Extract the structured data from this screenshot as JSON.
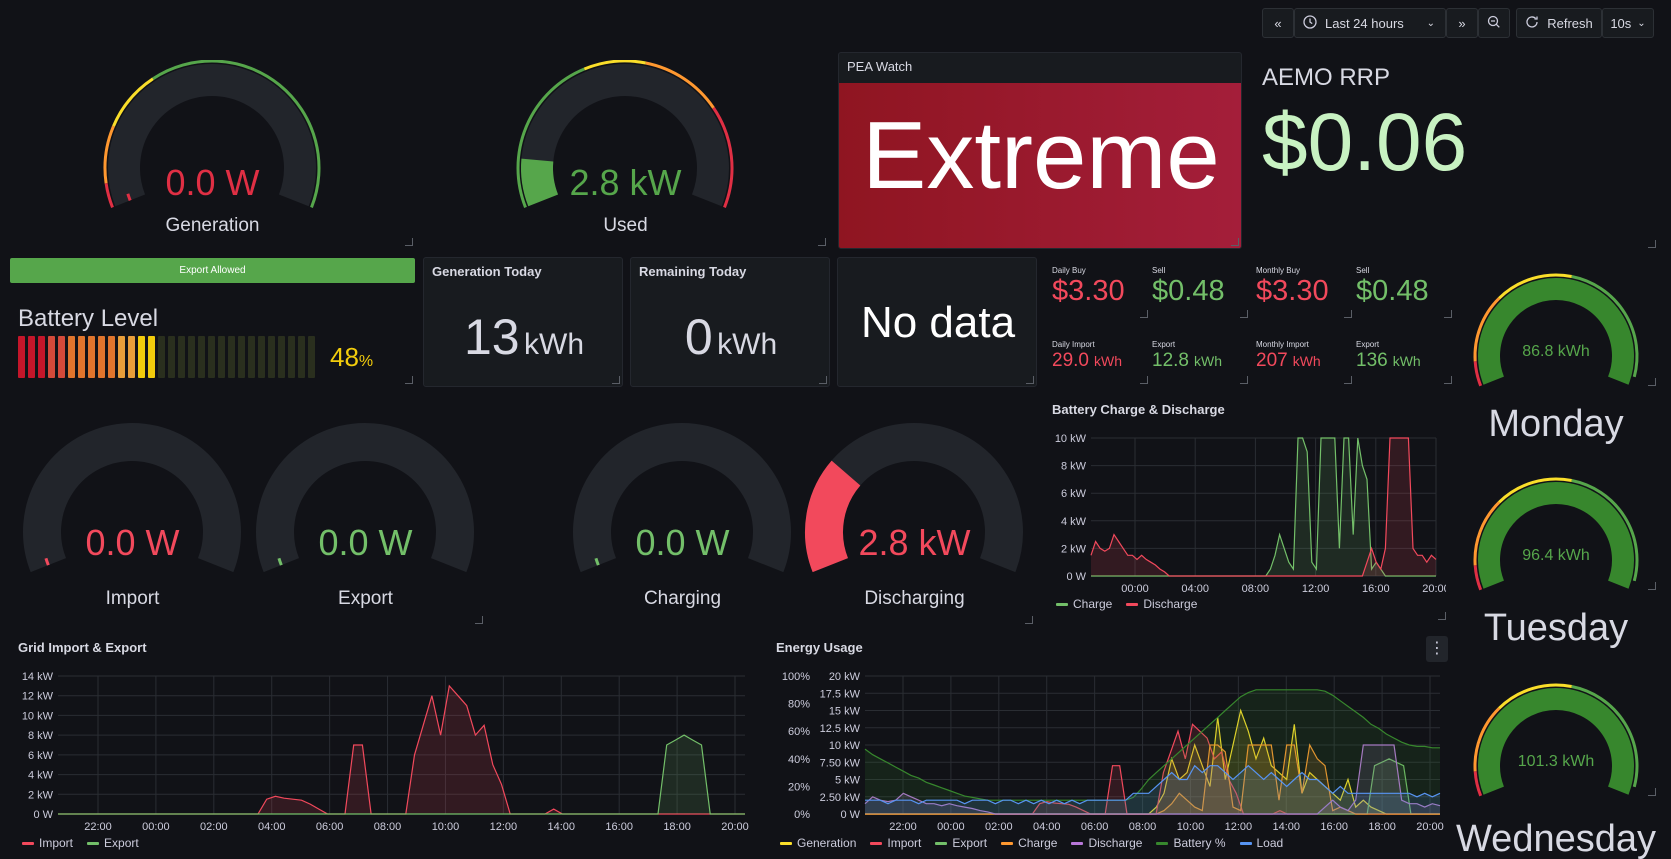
{
  "toolbar": {
    "time_range": "Last 24 hours",
    "refresh_label": "Refresh",
    "refresh_interval": "10s",
    "icons": [
      "chevron-left-double-icon",
      "clock-icon",
      "chevron-down-icon",
      "chevron-right-double-icon",
      "zoom-out-icon",
      "refresh-icon",
      "chevron-down-icon"
    ]
  },
  "gauges_top": [
    {
      "value": "0.0 W",
      "label": "Generation",
      "fill": 0.0,
      "color": "#e02f44"
    },
    {
      "value": "2.8 kW",
      "label": "Used",
      "fill": 0.12,
      "color": "#56a64b"
    }
  ],
  "pea_watch": {
    "title": "PEA Watch",
    "value": "Extreme",
    "color": "#a41e2f"
  },
  "aemo": {
    "title": "AEMO RRP",
    "value": "$0.06",
    "color": "#c8f2c2"
  },
  "export_bar": {
    "label": "Export Allowed",
    "color": "#56a64b"
  },
  "battery": {
    "title": "Battery Level",
    "value": "48",
    "unit": "%",
    "level": 0.48,
    "color": "#f2cc0c"
  },
  "gen_today": {
    "title": "Generation Today",
    "value": "13",
    "unit": "kWh"
  },
  "remaining_today": {
    "title": "Remaining Today",
    "value": "0",
    "unit": "kWh"
  },
  "no_data": {
    "text": "No data"
  },
  "costs": [
    {
      "title": "Daily Buy",
      "value": "$3.30",
      "color": "#f2495c"
    },
    {
      "title": "Sell",
      "value": "$0.48",
      "color": "#73bf69"
    },
    {
      "title": "Monthly Buy",
      "value": "$3.30",
      "color": "#f2495c"
    },
    {
      "title": "Sell",
      "value": "$0.48",
      "color": "#73bf69"
    }
  ],
  "energy_totals": [
    {
      "title": "Daily Import",
      "value": "29.0",
      "unit": "kWh",
      "color": "#f2495c"
    },
    {
      "title": "Export",
      "value": "12.8",
      "unit": "kWh",
      "color": "#73bf69"
    },
    {
      "title": "Monthly Import",
      "value": "207",
      "unit": "kWh",
      "color": "#f2495c"
    },
    {
      "title": "Export",
      "value": "136",
      "unit": "kWh",
      "color": "#73bf69"
    }
  ],
  "gauges_mid": [
    {
      "value": "0.0 W",
      "label": "Import",
      "fill": 0.0,
      "color": "#f2495c"
    },
    {
      "value": "0.0 W",
      "label": "Export",
      "fill": 0.0,
      "color": "#73bf69"
    },
    {
      "value": "0.0 W",
      "label": "Charging",
      "fill": 0.0,
      "color": "#73bf69"
    },
    {
      "value": "2.8 kW",
      "label": "Discharging",
      "fill": 0.28,
      "color": "#f2495c"
    }
  ],
  "days": [
    {
      "value": "86.8 kWh",
      "label": "Monday",
      "fill": 1.0
    },
    {
      "value": "96.4 kWh",
      "label": "Tuesday",
      "fill": 1.0
    },
    {
      "value": "101.3 kWh",
      "label": "Wednesday",
      "fill": 1.0
    }
  ],
  "chart_data": [
    {
      "type": "line",
      "title": "Battery Charge & Discharge",
      "x_ticks": [
        "00:00",
        "04:00",
        "08:00",
        "12:00",
        "16:00",
        "20:00"
      ],
      "y_ticks": [
        "0 W",
        "2 kW",
        "4 kW",
        "6 kW",
        "8 kW",
        "10 kW"
      ],
      "ylim": [
        0,
        10
      ],
      "series": [
        {
          "name": "Charge",
          "color": "#73bf69",
          "values": [
            0,
            0,
            0,
            0,
            0,
            0,
            0,
            0,
            0,
            0,
            0,
            0,
            0,
            0,
            0,
            0,
            0,
            0,
            0,
            0,
            0,
            0,
            0,
            0,
            0,
            0,
            0,
            0,
            0,
            0,
            0,
            0,
            0,
            0,
            0,
            0,
            0,
            0,
            0,
            0.5,
            1.5,
            3,
            2,
            1,
            0.5,
            10,
            10,
            9,
            1,
            0.5,
            10,
            10,
            10,
            10,
            2,
            10,
            10,
            3,
            10,
            8,
            7,
            0.5,
            1,
            0.5,
            0,
            0,
            0,
            0,
            0,
            0,
            0,
            0,
            0,
            0,
            0,
            0
          ]
        },
        {
          "name": "Discharge",
          "color": "#f2495c",
          "values": [
            1.5,
            2.5,
            2,
            1.8,
            2,
            3,
            2.5,
            2,
            1.5,
            1.5,
            1.2,
            1.5,
            1.2,
            1,
            0.8,
            0.5,
            0.3,
            0,
            0,
            0,
            0,
            0,
            0,
            0,
            0,
            0,
            0,
            0,
            0,
            0,
            0,
            0,
            0,
            0,
            0,
            0,
            0,
            0,
            0,
            0,
            0,
            0,
            0,
            0,
            0,
            0,
            0,
            0,
            0,
            0,
            0,
            0,
            0,
            0,
            0,
            0,
            0,
            0,
            0,
            0,
            1,
            2,
            1,
            0.5,
            2,
            10,
            10,
            10,
            10,
            10,
            2,
            1.5,
            1.5,
            1,
            1.5,
            1.2
          ]
        }
      ],
      "legend": [
        "Charge",
        "Discharge"
      ]
    },
    {
      "type": "area",
      "title": "Grid Import & Export",
      "x_ticks": [
        "22:00",
        "00:00",
        "02:00",
        "04:00",
        "06:00",
        "08:00",
        "10:00",
        "12:00",
        "14:00",
        "16:00",
        "18:00",
        "20:00"
      ],
      "y_ticks": [
        "0 W",
        "2 kW",
        "4 kW",
        "6 kW",
        "8 kW",
        "10 kW",
        "12 kW",
        "14 kW"
      ],
      "ylim": [
        0,
        14
      ],
      "series": [
        {
          "name": "Import",
          "color": "#f2495c",
          "values": [
            0,
            0,
            0,
            0,
            0,
            0,
            0,
            0,
            0,
            0,
            0,
            0,
            0,
            0,
            0,
            0,
            0,
            0,
            0,
            0,
            0,
            0,
            0,
            0,
            1.5,
            1.8,
            1.6,
            1.5,
            1.4,
            1,
            0.5,
            0,
            0,
            0,
            7,
            7,
            0,
            0,
            0,
            0,
            0,
            6,
            9,
            12,
            8,
            13,
            12,
            11,
            8,
            9,
            5,
            3,
            0,
            0,
            0,
            0,
            0,
            0.5,
            0,
            0,
            0,
            0,
            0,
            0,
            0,
            0,
            0,
            0,
            0,
            0,
            0,
            0,
            0,
            0,
            0,
            0,
            0,
            0,
            0,
            0
          ]
        },
        {
          "name": "Export",
          "color": "#73bf69",
          "values": [
            0,
            0,
            0,
            0,
            0,
            0,
            0,
            0,
            0,
            0,
            0,
            0,
            0,
            0,
            0,
            0,
            0,
            0,
            0,
            0,
            0,
            0,
            0,
            0,
            0,
            0,
            0,
            0,
            0,
            0,
            0,
            0,
            0,
            0,
            0,
            0,
            0,
            0,
            0,
            0,
            0,
            0,
            0,
            0,
            0,
            0,
            0,
            0,
            0,
            0,
            0,
            0,
            0,
            0,
            0,
            0,
            0,
            0,
            0,
            0,
            0,
            0,
            0,
            0,
            0,
            0,
            0,
            0,
            0,
            0,
            7,
            7.5,
            8,
            7.5,
            7,
            0,
            0,
            0,
            0,
            0
          ]
        }
      ],
      "legend": [
        "Import",
        "Export"
      ]
    },
    {
      "type": "line",
      "title": "Energy Usage",
      "x_ticks": [
        "22:00",
        "00:00",
        "02:00",
        "04:00",
        "06:00",
        "08:00",
        "10:00",
        "12:00",
        "14:00",
        "16:00",
        "18:00",
        "20:00"
      ],
      "y_ticks_left": [
        "0%",
        "20%",
        "40%",
        "60%",
        "80%",
        "100%"
      ],
      "y_ticks_right": [
        "0 W",
        "2.50 kW",
        "5 kW",
        "7.50 kW",
        "10 kW",
        "12.5 kW",
        "15 kW",
        "17.5 kW",
        "20 kW"
      ],
      "ylim": [
        0,
        20
      ],
      "series": [
        {
          "name": "Generation",
          "color": "#fade2a",
          "values": [
            0,
            0,
            0,
            0,
            0,
            0,
            0,
            0,
            0,
            0,
            0,
            0,
            0,
            0,
            0,
            0,
            0,
            0,
            0,
            0,
            0,
            0,
            0,
            0,
            0,
            0,
            0,
            0,
            0,
            0,
            0,
            0,
            0,
            0,
            0,
            0,
            0,
            0,
            1,
            3,
            8,
            5,
            6,
            10,
            7,
            4,
            14,
            5,
            10,
            15,
            12,
            8,
            11,
            7,
            6,
            5,
            13,
            3,
            6,
            5,
            4,
            3,
            2,
            5,
            1,
            2,
            1,
            0.5,
            0,
            0,
            0,
            0,
            0,
            0,
            0,
            0
          ]
        },
        {
          "name": "Import",
          "color": "#f2495c",
          "values": [
            0,
            0,
            0,
            0,
            0,
            0,
            0,
            0,
            0,
            0,
            0,
            0,
            0,
            0,
            0,
            0,
            0,
            0,
            0,
            0,
            0,
            0,
            0,
            0,
            1.5,
            1.8,
            1.6,
            1.5,
            1.4,
            1,
            0.5,
            0,
            0,
            0,
            7,
            7,
            0,
            0,
            0,
            0,
            0,
            6,
            9,
            12,
            8,
            13,
            12,
            11,
            8,
            9,
            5,
            3,
            0,
            0,
            0,
            0,
            0,
            0.5,
            0,
            0,
            0,
            0,
            0,
            0,
            0,
            0,
            0,
            0,
            0,
            0,
            0,
            0,
            0,
            0,
            0,
            0,
            0,
            0,
            0,
            0
          ]
        },
        {
          "name": "Export",
          "color": "#73bf69",
          "values": [
            0,
            0,
            0,
            0,
            0,
            0,
            0,
            0,
            0,
            0,
            0,
            0,
            0,
            0,
            0,
            0,
            0,
            0,
            0,
            0,
            0,
            0,
            0,
            0,
            0,
            0,
            0,
            0,
            0,
            0,
            0,
            0,
            0,
            0,
            0,
            0,
            0,
            0,
            0,
            0,
            0,
            0,
            0,
            0,
            0,
            0,
            0,
            0,
            0,
            0,
            0,
            0,
            0,
            0,
            0,
            0,
            0,
            0,
            0,
            0,
            0,
            0,
            0,
            0,
            0,
            0,
            0,
            0,
            0,
            0,
            7,
            7.5,
            8,
            7.5,
            7,
            0,
            0,
            0,
            0,
            0
          ]
        },
        {
          "name": "Charge",
          "color": "#ff9830",
          "values": [
            0,
            0,
            0,
            0,
            0,
            0,
            0,
            0,
            0,
            0,
            0,
            0,
            0,
            0,
            0,
            0,
            0,
            0,
            0,
            0,
            0,
            0,
            0,
            0,
            0,
            0,
            0,
            0,
            0,
            0,
            0,
            0,
            0,
            0,
            0,
            0,
            0,
            0,
            0,
            0.5,
            1.5,
            3,
            2,
            1,
            0.5,
            10,
            10,
            9,
            1,
            0.5,
            10,
            10,
            10,
            10,
            2,
            10,
            10,
            3,
            10,
            8,
            7,
            0.5,
            1,
            0.5,
            0,
            0,
            0,
            0,
            0,
            0,
            0,
            0,
            0,
            0,
            0,
            0
          ]
        },
        {
          "name": "Discharge",
          "color": "#b877d9",
          "values": [
            1.5,
            2.5,
            2,
            1.8,
            2,
            3,
            2.5,
            2,
            1.5,
            1.5,
            1.2,
            1.5,
            1.2,
            1,
            0.8,
            0.5,
            0.3,
            0,
            0,
            0,
            0,
            0,
            0,
            0,
            0,
            0,
            0,
            0,
            0,
            0,
            0,
            0,
            0,
            0,
            0,
            0,
            0,
            0,
            0,
            0,
            0,
            0,
            0,
            0,
            0,
            0,
            0,
            0,
            0,
            0,
            0,
            0,
            0,
            0,
            0,
            0,
            0,
            0,
            0,
            0,
            1,
            2,
            1,
            0.5,
            2,
            10,
            10,
            10,
            10,
            10,
            2,
            1.5,
            1.5,
            1,
            1.5,
            1.2
          ]
        },
        {
          "name": "Battery %",
          "color": "#37872d",
          "values": [
            47,
            43,
            40,
            37,
            34,
            31,
            28,
            26,
            23,
            21,
            19,
            17,
            15,
            13,
            12,
            11,
            10,
            10,
            10,
            10,
            10,
            10,
            10,
            10,
            10,
            10,
            10,
            10,
            10,
            10,
            10,
            10,
            10,
            10,
            10,
            12,
            18,
            25,
            30,
            35,
            40,
            45,
            50,
            55,
            60,
            65,
            70,
            75,
            80,
            85,
            88,
            90,
            90,
            90,
            90,
            90,
            90,
            90,
            90,
            90,
            89,
            86,
            82,
            78,
            74,
            70,
            65,
            62,
            58,
            55,
            52,
            50,
            49,
            49,
            48,
            48
          ]
        },
        {
          "name": "Load",
          "color": "#5794f2",
          "values": [
            2,
            2,
            2,
            1.5,
            2,
            2,
            2,
            1.5,
            2,
            2,
            2,
            2,
            2,
            1.5,
            2,
            2,
            2,
            1.5,
            2,
            2,
            1.5,
            2,
            1.5,
            2,
            1.5,
            2,
            1.5,
            2,
            1.5,
            2,
            2,
            2,
            2,
            2,
            2,
            3,
            3,
            3,
            4,
            5,
            6,
            5,
            5,
            7,
            6,
            7,
            7,
            6,
            5,
            6,
            7,
            6,
            5,
            6,
            5,
            4,
            5,
            6,
            5,
            5,
            4,
            3,
            4,
            3,
            3,
            3,
            3,
            3,
            3,
            3,
            3,
            3,
            2.5,
            3,
            2.5,
            3
          ]
        }
      ],
      "legend": [
        "Generation",
        "Import",
        "Export",
        "Charge",
        "Discharge",
        "Battery %",
        "Load"
      ]
    }
  ]
}
